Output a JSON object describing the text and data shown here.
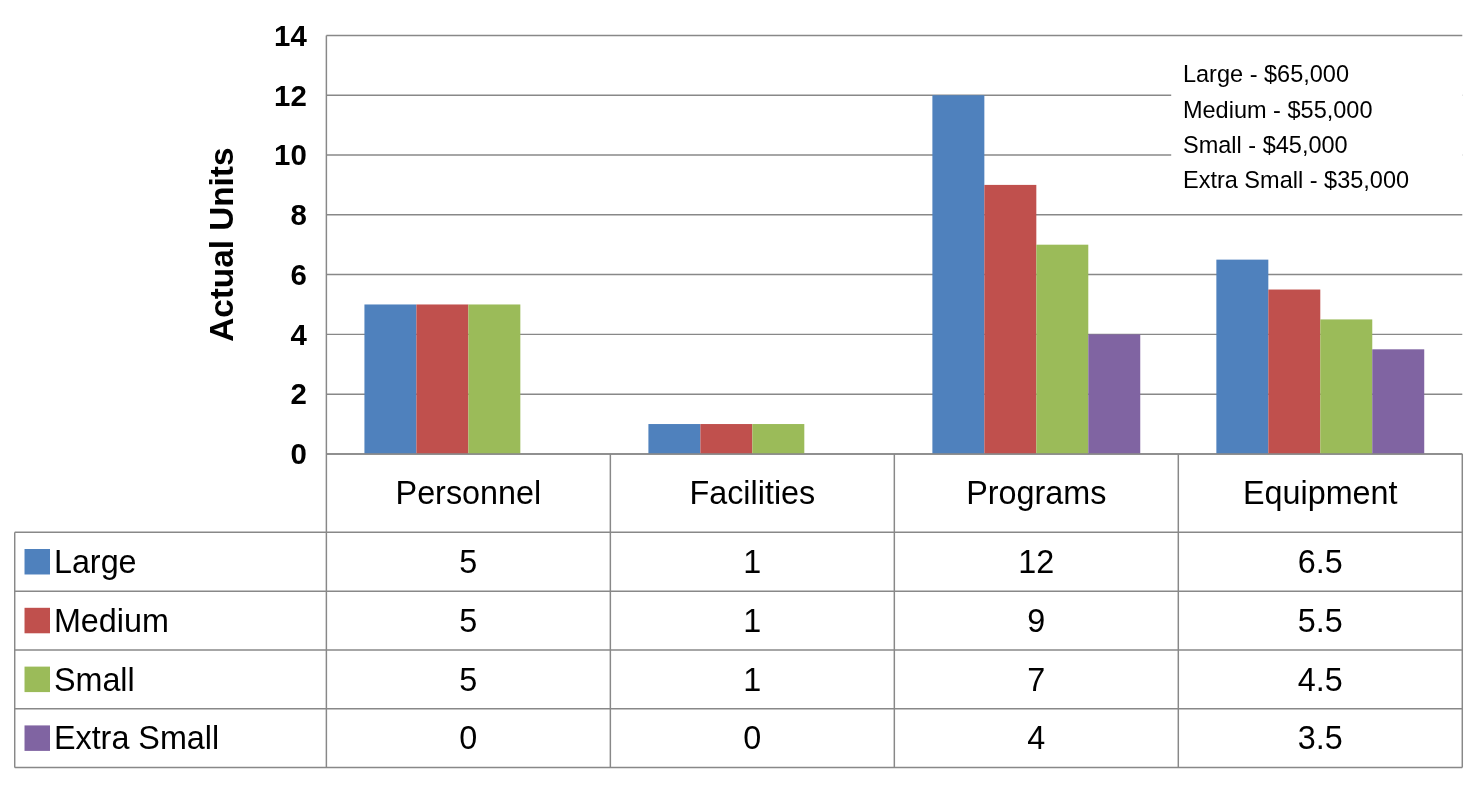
{
  "chart_data": {
    "type": "bar",
    "ylabel": "Actual Units",
    "categories": [
      "Personnel",
      "Facilities",
      "Programs",
      "Equipment"
    ],
    "series": [
      {
        "name": "Large",
        "color": "#4f81bd",
        "values": [
          5,
          1,
          12,
          6.5
        ]
      },
      {
        "name": "Medium",
        "color": "#c0504d",
        "values": [
          5,
          1,
          9,
          5.5
        ]
      },
      {
        "name": "Small",
        "color": "#9bbb59",
        "values": [
          5,
          1,
          7,
          4.5
        ]
      },
      {
        "name": "Extra Small",
        "color": "#8064a2",
        "values": [
          0,
          0,
          4,
          3.5
        ]
      }
    ],
    "ylim": [
      0,
      14
    ],
    "yticks": [
      0,
      2,
      4,
      6,
      8,
      10,
      12,
      14
    ],
    "grid": "y",
    "data_labels": true,
    "legend": "bottom left",
    "annotations": [
      "Large - $65,000",
      "Medium - $55,000",
      "Small - $45,000",
      "Extra Small - $35,000"
    ]
  }
}
